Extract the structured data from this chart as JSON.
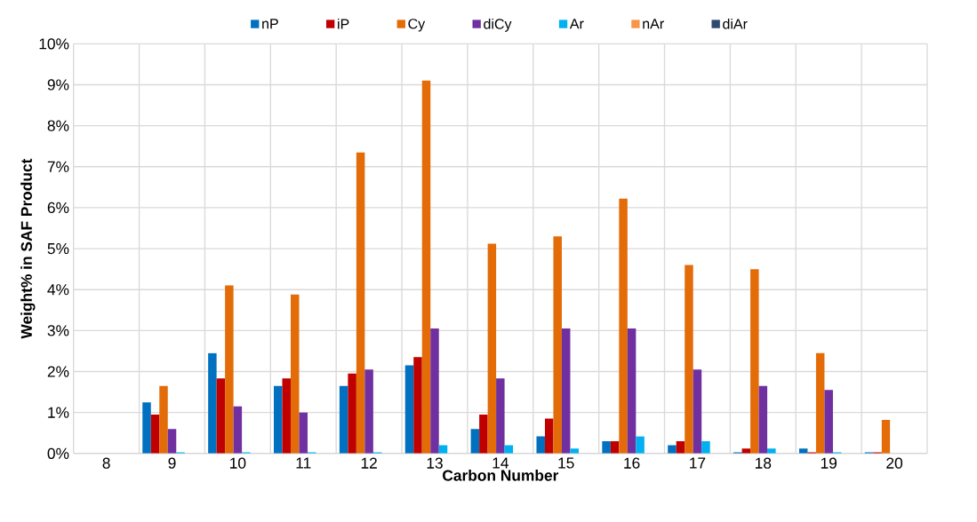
{
  "chart_data": {
    "type": "bar",
    "xlabel": "Carbon Number",
    "ylabel": "Weight% in SAF Product",
    "categories": [
      "8",
      "9",
      "10",
      "11",
      "12",
      "13",
      "14",
      "15",
      "16",
      "17",
      "18",
      "19",
      "20"
    ],
    "series": [
      {
        "name": "nP",
        "color": "#0070c0",
        "values": [
          0,
          1.25,
          2.45,
          1.65,
          1.65,
          2.15,
          0.6,
          0.42,
          0.3,
          0.2,
          0.03,
          0.12,
          0.03
        ]
      },
      {
        "name": "iP",
        "color": "#c00000",
        "values": [
          0,
          0.95,
          1.83,
          1.83,
          1.95,
          2.35,
          0.95,
          0.85,
          0.3,
          0.3,
          0.12,
          0.03,
          0.03
        ]
      },
      {
        "name": "Cy",
        "color": "#e36c09",
        "values": [
          0,
          1.65,
          4.1,
          3.88,
          7.35,
          9.1,
          5.12,
          5.3,
          6.22,
          4.6,
          4.5,
          2.45,
          0.82
        ]
      },
      {
        "name": "diCy",
        "color": "#7030a0",
        "values": [
          0,
          0.6,
          1.15,
          1.0,
          2.05,
          3.05,
          1.83,
          3.05,
          3.05,
          2.05,
          1.65,
          1.55,
          0
        ]
      },
      {
        "name": "Ar",
        "color": "#00b0f0",
        "values": [
          0,
          0.03,
          0.03,
          0.03,
          0.03,
          0.2,
          0.2,
          0.12,
          0.42,
          0.3,
          0.12,
          0.03,
          0
        ]
      },
      {
        "name": "nAr",
        "color": "#f79646",
        "values": [
          0,
          0,
          0,
          0,
          0,
          0,
          0,
          0,
          0,
          0,
          0,
          0,
          0
        ]
      },
      {
        "name": "diAr",
        "color": "#2e4a6e",
        "values": [
          0,
          0,
          0,
          0,
          0,
          0,
          0,
          0,
          0,
          0,
          0,
          0,
          0
        ]
      }
    ],
    "ylim": [
      0,
      10
    ],
    "yticks": [
      {
        "value": 0,
        "label": "0%"
      },
      {
        "value": 1,
        "label": "1%"
      },
      {
        "value": 2,
        "label": "2%"
      },
      {
        "value": 3,
        "label": "3%"
      },
      {
        "value": 4,
        "label": "4%"
      },
      {
        "value": 5,
        "label": "5%"
      },
      {
        "value": 6,
        "label": "6%"
      },
      {
        "value": 7,
        "label": "7%"
      },
      {
        "value": 8,
        "label": "8%"
      },
      {
        "value": 9,
        "label": "9%"
      },
      {
        "value": 10,
        "label": "10%"
      }
    ],
    "grid": true,
    "legend": "top"
  }
}
